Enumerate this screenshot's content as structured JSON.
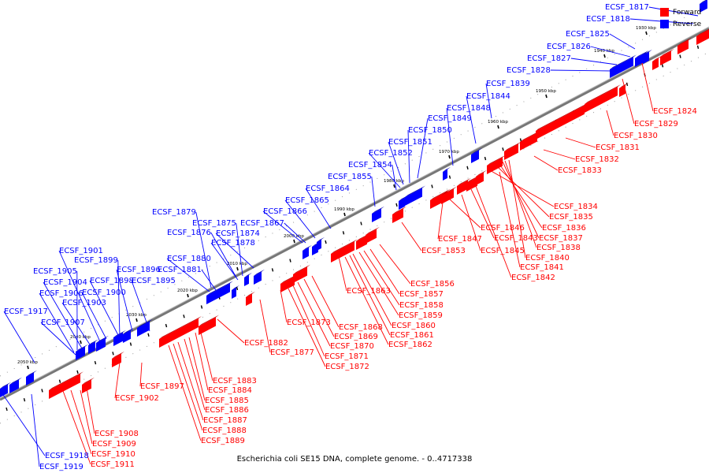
{
  "caption": "Escherichia coli SE15 DNA, complete genome. - 0..4717338",
  "legend": [
    {
      "label": "Forward",
      "color": "#ff0000"
    },
    {
      "label": "Reverse",
      "color": "#0000ff"
    }
  ],
  "colors": {
    "forward": "#ff0000",
    "reverse": "#0000ff",
    "backbone": "#888888"
  },
  "scale_labels": [
    "1930 kbp",
    "1940 kbp",
    "1950 kbp",
    "1960 kbp",
    "1970 kbp",
    "1980 kbp",
    "1990 kbp",
    "2000 kbp",
    "2010 kbp",
    "2020 kbp",
    "2030 kbp",
    "2040 kbp",
    "2050 kbp"
  ],
  "reverse_genes": [
    "ECSF_1817",
    "ECSF_1818",
    "ECSF_1825",
    "ECSF_1826",
    "ECSF_1827",
    "ECSF_1828",
    "ECSF_1839",
    "ECSF_1844",
    "ECSF_1848",
    "ECSF_1849",
    "ECSF_1850",
    "ECSF_1851",
    "ECSF_1852",
    "ECSF_1854",
    "ECSF_1855",
    "ECSF_1864",
    "ECSF_1865",
    "ECSF_1866",
    "ECSF_1867",
    "ECSF_1874",
    "ECSF_1875",
    "ECSF_1876",
    "ECSF_1878",
    "ECSF_1879",
    "ECSF_1880",
    "ECSF_1881",
    "ECSF_1895",
    "ECSF_1896",
    "ECSF_1898",
    "ECSF_1899",
    "ECSF_1900",
    "ECSF_1901",
    "ECSF_1903",
    "ECSF_1904",
    "ECSF_1905",
    "ECSF_1906",
    "ECSF_1907",
    "ECSF_1917",
    "ECSF_1918",
    "ECSF_1919"
  ],
  "forward_genes": [
    "ECSF_1824",
    "ECSF_1829",
    "ECSF_1830",
    "ECSF_1831",
    "ECSF_1832",
    "ECSF_1833",
    "ECSF_1834",
    "ECSF_1835",
    "ECSF_1836",
    "ECSF_1837",
    "ECSF_1838",
    "ECSF_1840",
    "ECSF_1841",
    "ECSF_1842",
    "ECSF_1843",
    "ECSF_1845",
    "ECSF_1846",
    "ECSF_1847",
    "ECSF_1853",
    "ECSF_1856",
    "ECSF_1857",
    "ECSF_1858",
    "ECSF_1859",
    "ECSF_1860",
    "ECSF_1861",
    "ECSF_1862",
    "ECSF_1863",
    "ECSF_1868",
    "ECSF_1869",
    "ECSF_1870",
    "ECSF_1871",
    "ECSF_1872",
    "ECSF_1873",
    "ECSF_1877",
    "ECSF_1882",
    "ECSF_1883",
    "ECSF_1884",
    "ECSF_1885",
    "ECSF_1886",
    "ECSF_1887",
    "ECSF_1888",
    "ECSF_1889",
    "ECSF_1897",
    "ECSF_1902",
    "ECSF_1908",
    "ECSF_1909",
    "ECSF_1910",
    "ECSF_1911"
  ]
}
